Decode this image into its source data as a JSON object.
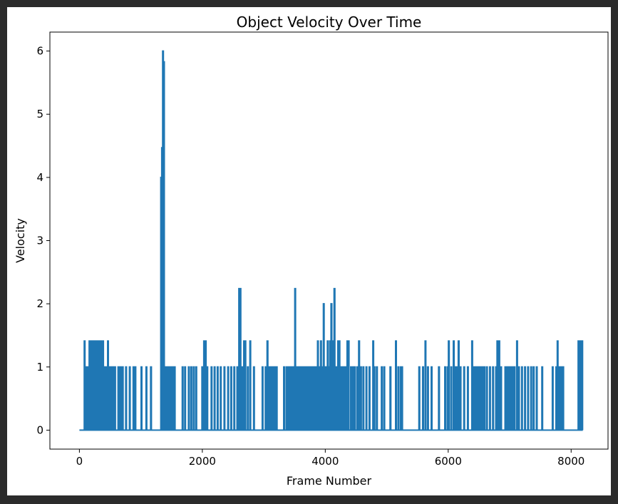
{
  "chart_data": {
    "type": "line",
    "title": "Object Velocity Over Time",
    "xlabel": "Frame Number",
    "ylabel": "Velocity",
    "xlim": [
      -480,
      8600
    ],
    "ylim": [
      -0.3,
      6.3
    ],
    "xticks": [
      0,
      2000,
      4000,
      6000,
      8000
    ],
    "yticks": [
      0,
      1,
      2,
      3,
      4,
      5,
      6
    ],
    "grid": false,
    "legend": "none",
    "series": [
      {
        "color": "#1f77b4",
        "spikes": [
          {
            "x": 85,
            "v": 1.41
          },
          {
            "x": 100,
            "v": 1.0
          },
          {
            "x": 130,
            "v": 1.0
          },
          {
            "x": 165,
            "v": 1.41
          },
          {
            "x": 185,
            "v": 1.41
          },
          {
            "x": 200,
            "v": 1.0
          },
          {
            "x": 215,
            "v": 1.41
          },
          {
            "x": 235,
            "v": 1.41
          },
          {
            "x": 250,
            "v": 1.0
          },
          {
            "x": 265,
            "v": 1.41
          },
          {
            "x": 285,
            "v": 1.41
          },
          {
            "x": 300,
            "v": 1.0
          },
          {
            "x": 315,
            "v": 1.41
          },
          {
            "x": 335,
            "v": 1.41
          },
          {
            "x": 350,
            "v": 1.0
          },
          {
            "x": 365,
            "v": 1.41
          },
          {
            "x": 385,
            "v": 1.41
          },
          {
            "x": 400,
            "v": 1.0
          },
          {
            "x": 420,
            "v": 1.0
          },
          {
            "x": 445,
            "v": 1.0
          },
          {
            "x": 465,
            "v": 1.41
          },
          {
            "x": 500,
            "v": 1.0
          },
          {
            "x": 525,
            "v": 1.0
          },
          {
            "x": 545,
            "v": 1.0
          },
          {
            "x": 580,
            "v": 1.0
          },
          {
            "x": 635,
            "v": 1.0
          },
          {
            "x": 670,
            "v": 1.0
          },
          {
            "x": 705,
            "v": 1.0
          },
          {
            "x": 760,
            "v": 1.0
          },
          {
            "x": 820,
            "v": 1.0
          },
          {
            "x": 880,
            "v": 1.0
          },
          {
            "x": 910,
            "v": 1.0
          },
          {
            "x": 1010,
            "v": 1.0
          },
          {
            "x": 1090,
            "v": 1.0
          },
          {
            "x": 1165,
            "v": 1.0
          },
          {
            "x": 1330,
            "v": 4.0
          },
          {
            "x": 1345,
            "v": 4.47
          },
          {
            "x": 1360,
            "v": 6.0
          },
          {
            "x": 1375,
            "v": 5.83
          },
          {
            "x": 1390,
            "v": 1.0
          },
          {
            "x": 1405,
            "v": 1.0
          },
          {
            "x": 1420,
            "v": 1.0
          },
          {
            "x": 1440,
            "v": 1.0
          },
          {
            "x": 1460,
            "v": 1.0
          },
          {
            "x": 1475,
            "v": 1.0
          },
          {
            "x": 1495,
            "v": 1.0
          },
          {
            "x": 1515,
            "v": 1.0
          },
          {
            "x": 1535,
            "v": 1.0
          },
          {
            "x": 1550,
            "v": 1.0
          },
          {
            "x": 1680,
            "v": 1.0
          },
          {
            "x": 1720,
            "v": 1.0
          },
          {
            "x": 1780,
            "v": 1.0
          },
          {
            "x": 1820,
            "v": 1.0
          },
          {
            "x": 1860,
            "v": 1.0
          },
          {
            "x": 1900,
            "v": 1.0
          },
          {
            "x": 2000,
            "v": 1.0
          },
          {
            "x": 2030,
            "v": 1.41
          },
          {
            "x": 2055,
            "v": 1.41
          },
          {
            "x": 2080,
            "v": 1.0
          },
          {
            "x": 2150,
            "v": 1.0
          },
          {
            "x": 2200,
            "v": 1.0
          },
          {
            "x": 2250,
            "v": 1.0
          },
          {
            "x": 2300,
            "v": 1.0
          },
          {
            "x": 2360,
            "v": 1.0
          },
          {
            "x": 2420,
            "v": 1.0
          },
          {
            "x": 2470,
            "v": 1.0
          },
          {
            "x": 2520,
            "v": 1.0
          },
          {
            "x": 2570,
            "v": 1.0
          },
          {
            "x": 2600,
            "v": 2.24
          },
          {
            "x": 2620,
            "v": 2.24
          },
          {
            "x": 2650,
            "v": 1.0
          },
          {
            "x": 2680,
            "v": 1.41
          },
          {
            "x": 2700,
            "v": 1.41
          },
          {
            "x": 2740,
            "v": 1.0
          },
          {
            "x": 2780,
            "v": 1.41
          },
          {
            "x": 2840,
            "v": 1.0
          },
          {
            "x": 2980,
            "v": 1.0
          },
          {
            "x": 3030,
            "v": 1.0
          },
          {
            "x": 3060,
            "v": 1.41
          },
          {
            "x": 3090,
            "v": 1.0
          },
          {
            "x": 3120,
            "v": 1.0
          },
          {
            "x": 3150,
            "v": 1.0
          },
          {
            "x": 3180,
            "v": 1.0
          },
          {
            "x": 3210,
            "v": 1.0
          },
          {
            "x": 3330,
            "v": 1.0
          },
          {
            "x": 3370,
            "v": 1.0
          },
          {
            "x": 3400,
            "v": 1.0
          },
          {
            "x": 3430,
            "v": 1.0
          },
          {
            "x": 3460,
            "v": 1.0
          },
          {
            "x": 3490,
            "v": 1.0
          },
          {
            "x": 3510,
            "v": 2.24
          },
          {
            "x": 3530,
            "v": 1.0
          },
          {
            "x": 3560,
            "v": 1.0
          },
          {
            "x": 3590,
            "v": 1.0
          },
          {
            "x": 3620,
            "v": 1.0
          },
          {
            "x": 3650,
            "v": 1.0
          },
          {
            "x": 3680,
            "v": 1.0
          },
          {
            "x": 3710,
            "v": 1.0
          },
          {
            "x": 3740,
            "v": 1.0
          },
          {
            "x": 3770,
            "v": 1.0
          },
          {
            "x": 3800,
            "v": 1.0
          },
          {
            "x": 3830,
            "v": 1.0
          },
          {
            "x": 3860,
            "v": 1.0
          },
          {
            "x": 3880,
            "v": 1.41
          },
          {
            "x": 3900,
            "v": 1.0
          },
          {
            "x": 3930,
            "v": 1.41
          },
          {
            "x": 3960,
            "v": 1.0
          },
          {
            "x": 3975,
            "v": 2.0
          },
          {
            "x": 3990,
            "v": 1.0
          },
          {
            "x": 4010,
            "v": 1.0
          },
          {
            "x": 4040,
            "v": 1.41
          },
          {
            "x": 4060,
            "v": 1.0
          },
          {
            "x": 4080,
            "v": 1.41
          },
          {
            "x": 4100,
            "v": 2.0
          },
          {
            "x": 4115,
            "v": 1.0
          },
          {
            "x": 4130,
            "v": 1.41
          },
          {
            "x": 4150,
            "v": 2.24
          },
          {
            "x": 4165,
            "v": 1.0
          },
          {
            "x": 4185,
            "v": 1.0
          },
          {
            "x": 4210,
            "v": 1.41
          },
          {
            "x": 4230,
            "v": 1.41
          },
          {
            "x": 4250,
            "v": 1.0
          },
          {
            "x": 4280,
            "v": 1.0
          },
          {
            "x": 4300,
            "v": 1.0
          },
          {
            "x": 4330,
            "v": 1.0
          },
          {
            "x": 4360,
            "v": 1.41
          },
          {
            "x": 4380,
            "v": 1.41
          },
          {
            "x": 4420,
            "v": 1.0
          },
          {
            "x": 4450,
            "v": 1.0
          },
          {
            "x": 4480,
            "v": 1.0
          },
          {
            "x": 4520,
            "v": 1.0
          },
          {
            "x": 4550,
            "v": 1.41
          },
          {
            "x": 4580,
            "v": 1.0
          },
          {
            "x": 4620,
            "v": 1.0
          },
          {
            "x": 4670,
            "v": 1.0
          },
          {
            "x": 4720,
            "v": 1.0
          },
          {
            "x": 4780,
            "v": 1.41
          },
          {
            "x": 4800,
            "v": 1.0
          },
          {
            "x": 4840,
            "v": 1.0
          },
          {
            "x": 4920,
            "v": 1.0
          },
          {
            "x": 4960,
            "v": 1.0
          },
          {
            "x": 5060,
            "v": 1.0
          },
          {
            "x": 5150,
            "v": 1.41
          },
          {
            "x": 5190,
            "v": 1.0
          },
          {
            "x": 5230,
            "v": 1.0
          },
          {
            "x": 5250,
            "v": 1.0
          },
          {
            "x": 5530,
            "v": 1.0
          },
          {
            "x": 5590,
            "v": 1.0
          },
          {
            "x": 5630,
            "v": 1.41
          },
          {
            "x": 5670,
            "v": 1.0
          },
          {
            "x": 5730,
            "v": 1.0
          },
          {
            "x": 5850,
            "v": 1.0
          },
          {
            "x": 5950,
            "v": 1.0
          },
          {
            "x": 5990,
            "v": 1.0
          },
          {
            "x": 6010,
            "v": 1.41
          },
          {
            "x": 6050,
            "v": 1.0
          },
          {
            "x": 6090,
            "v": 1.41
          },
          {
            "x": 6110,
            "v": 1.0
          },
          {
            "x": 6140,
            "v": 1.0
          },
          {
            "x": 6170,
            "v": 1.41
          },
          {
            "x": 6200,
            "v": 1.0
          },
          {
            "x": 6260,
            "v": 1.0
          },
          {
            "x": 6320,
            "v": 1.0
          },
          {
            "x": 6390,
            "v": 1.41
          },
          {
            "x": 6410,
            "v": 1.0
          },
          {
            "x": 6440,
            "v": 1.0
          },
          {
            "x": 6470,
            "v": 1.0
          },
          {
            "x": 6500,
            "v": 1.0
          },
          {
            "x": 6530,
            "v": 1.0
          },
          {
            "x": 6560,
            "v": 1.0
          },
          {
            "x": 6590,
            "v": 1.0
          },
          {
            "x": 6630,
            "v": 1.0
          },
          {
            "x": 6680,
            "v": 1.0
          },
          {
            "x": 6730,
            "v": 1.0
          },
          {
            "x": 6780,
            "v": 1.0
          },
          {
            "x": 6800,
            "v": 1.41
          },
          {
            "x": 6830,
            "v": 1.41
          },
          {
            "x": 6860,
            "v": 1.0
          },
          {
            "x": 6930,
            "v": 1.0
          },
          {
            "x": 6960,
            "v": 1.0
          },
          {
            "x": 6990,
            "v": 1.0
          },
          {
            "x": 7020,
            "v": 1.0
          },
          {
            "x": 7050,
            "v": 1.0
          },
          {
            "x": 7080,
            "v": 1.0
          },
          {
            "x": 7120,
            "v": 1.41
          },
          {
            "x": 7150,
            "v": 1.0
          },
          {
            "x": 7200,
            "v": 1.0
          },
          {
            "x": 7250,
            "v": 1.0
          },
          {
            "x": 7300,
            "v": 1.0
          },
          {
            "x": 7350,
            "v": 1.0
          },
          {
            "x": 7390,
            "v": 1.0
          },
          {
            "x": 7440,
            "v": 1.0
          },
          {
            "x": 7530,
            "v": 1.0
          },
          {
            "x": 7700,
            "v": 1.0
          },
          {
            "x": 7760,
            "v": 1.0
          },
          {
            "x": 7780,
            "v": 1.41
          },
          {
            "x": 7810,
            "v": 1.0
          },
          {
            "x": 7840,
            "v": 1.0
          },
          {
            "x": 7870,
            "v": 1.0
          },
          {
            "x": 8120,
            "v": 1.41
          },
          {
            "x": 8140,
            "v": 1.41
          },
          {
            "x": 8160,
            "v": 1.41
          },
          {
            "x": 8180,
            "v": 1.41
          }
        ]
      }
    ]
  }
}
